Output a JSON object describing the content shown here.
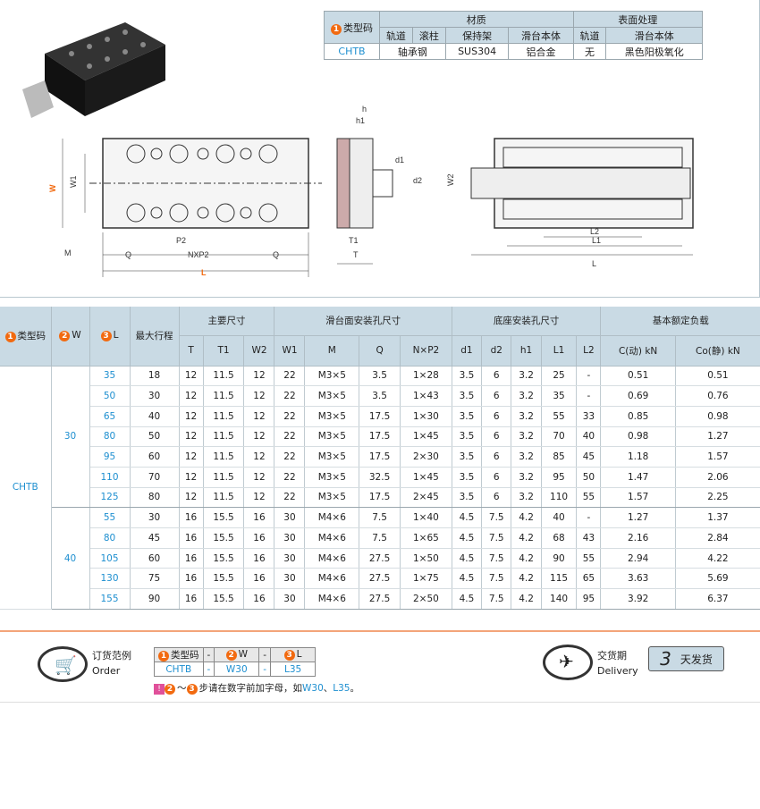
{
  "spec_table": {
    "type_label": "类型码",
    "material": "材质",
    "surface": "表面处理",
    "cols": [
      "轨道",
      "滚柱",
      "保持架",
      "滑台本体",
      "轨道",
      "滑台本体"
    ],
    "row": {
      "type": "CHTB",
      "rail_roller": "轴承钢",
      "cage": "SUS304",
      "body": "铝合金",
      "rail_surface": "无",
      "body_surface": "黑色阳极氧化"
    }
  },
  "drawing": {
    "labels": [
      "W",
      "W1",
      "M",
      "Q",
      "NXP2",
      "Q",
      "L",
      "P2",
      "h",
      "h1",
      "d1",
      "d2",
      "T1",
      "T",
      "W2",
      "L2",
      "L1",
      "L"
    ]
  },
  "main_table": {
    "headers": {
      "type": "类型码",
      "w": "W",
      "l": "L",
      "stroke": "最大行程",
      "main_dims": "主要尺寸",
      "slide_holes": "滑台面安装孔尺寸",
      "base_holes": "底座安装孔尺寸",
      "load": "基本额定负载",
      "sub": [
        "T",
        "T1",
        "W2",
        "W1",
        "M",
        "Q",
        "N×P2",
        "d1",
        "d2",
        "h1",
        "L1",
        "L2",
        "C(动) kN",
        "Co(静) kN"
      ]
    },
    "type": "CHTB",
    "groups": [
      {
        "w": "30",
        "rows": [
          [
            "35",
            "18",
            "12",
            "11.5",
            "12",
            "22",
            "M3×5",
            "3.5",
            "1×28",
            "3.5",
            "6",
            "3.2",
            "25",
            "-",
            "0.51",
            "0.51"
          ],
          [
            "50",
            "30",
            "12",
            "11.5",
            "12",
            "22",
            "M3×5",
            "3.5",
            "1×43",
            "3.5",
            "6",
            "3.2",
            "35",
            "-",
            "0.69",
            "0.76"
          ],
          [
            "65",
            "40",
            "12",
            "11.5",
            "12",
            "22",
            "M3×5",
            "17.5",
            "1×30",
            "3.5",
            "6",
            "3.2",
            "55",
            "33",
            "0.85",
            "0.98"
          ],
          [
            "80",
            "50",
            "12",
            "11.5",
            "12",
            "22",
            "M3×5",
            "17.5",
            "1×45",
            "3.5",
            "6",
            "3.2",
            "70",
            "40",
            "0.98",
            "1.27"
          ],
          [
            "95",
            "60",
            "12",
            "11.5",
            "12",
            "22",
            "M3×5",
            "17.5",
            "2×30",
            "3.5",
            "6",
            "3.2",
            "85",
            "45",
            "1.18",
            "1.57"
          ],
          [
            "110",
            "70",
            "12",
            "11.5",
            "12",
            "22",
            "M3×5",
            "32.5",
            "1×45",
            "3.5",
            "6",
            "3.2",
            "95",
            "50",
            "1.47",
            "2.06"
          ],
          [
            "125",
            "80",
            "12",
            "11.5",
            "12",
            "22",
            "M3×5",
            "17.5",
            "2×45",
            "3.5",
            "6",
            "3.2",
            "110",
            "55",
            "1.57",
            "2.25"
          ]
        ]
      },
      {
        "w": "40",
        "rows": [
          [
            "55",
            "30",
            "16",
            "15.5",
            "16",
            "30",
            "M4×6",
            "7.5",
            "1×40",
            "4.5",
            "7.5",
            "4.2",
            "40",
            "-",
            "1.27",
            "1.37"
          ],
          [
            "80",
            "45",
            "16",
            "15.5",
            "16",
            "30",
            "M4×6",
            "7.5",
            "1×65",
            "4.5",
            "7.5",
            "4.2",
            "68",
            "43",
            "2.16",
            "2.84"
          ],
          [
            "105",
            "60",
            "16",
            "15.5",
            "16",
            "30",
            "M4×6",
            "27.5",
            "1×50",
            "4.5",
            "7.5",
            "4.2",
            "90",
            "55",
            "2.94",
            "4.22"
          ],
          [
            "130",
            "75",
            "16",
            "15.5",
            "16",
            "30",
            "M4×6",
            "27.5",
            "1×75",
            "4.5",
            "7.5",
            "4.2",
            "115",
            "65",
            "3.63",
            "5.69"
          ],
          [
            "155",
            "90",
            "16",
            "15.5",
            "16",
            "30",
            "M4×6",
            "27.5",
            "2×50",
            "4.5",
            "7.5",
            "4.2",
            "140",
            "95",
            "3.92",
            "6.37"
          ]
        ]
      }
    ]
  },
  "order": {
    "title_cn": "订货范例",
    "title_en": "Order",
    "h_type": "类型码",
    "h_w": "W",
    "h_l": "L",
    "dash": "-",
    "v_type": "CHTB",
    "v_w": "W30",
    "v_l": "L35",
    "note": "步请在数字前加字母，如",
    "note_ex1": "W30",
    "note_sep": "、",
    "note_ex2": "L35",
    "note_end": "。",
    "tilde": "～"
  },
  "delivery": {
    "title_cn": "交货期",
    "title_en": "Delivery",
    "days": "3",
    "days_label": "天发货"
  },
  "colors": {
    "accent": "#f26a10",
    "link": "#1e8fd0",
    "header_bg": "#c9dae4"
  }
}
